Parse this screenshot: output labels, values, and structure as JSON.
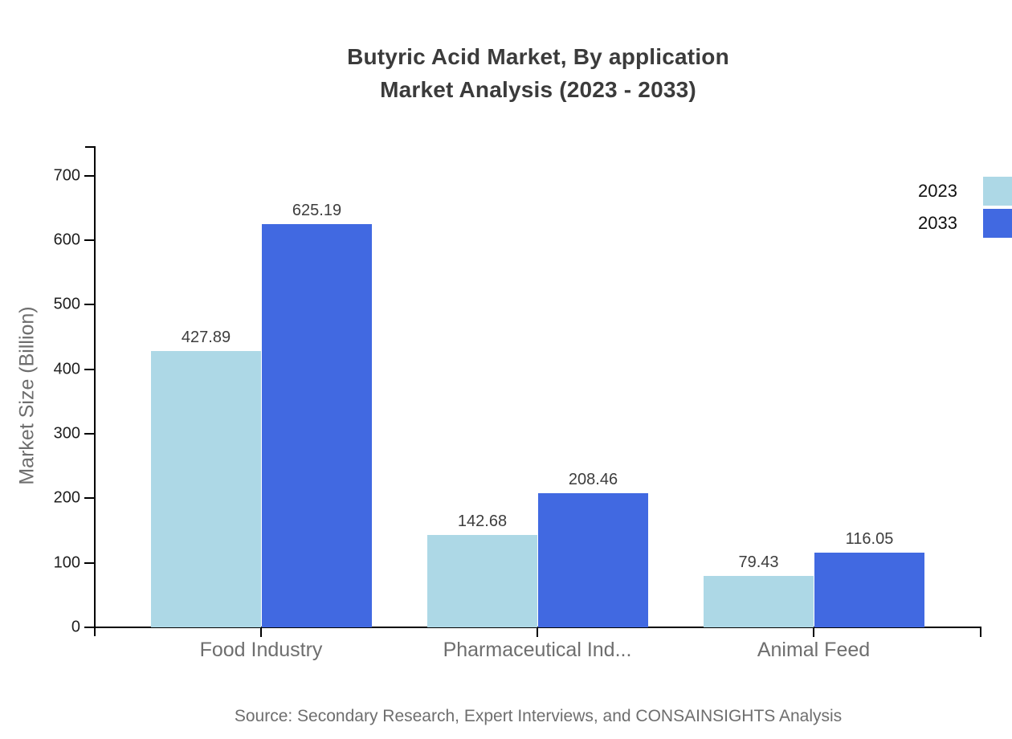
{
  "title": {
    "line1": "Butyric Acid Market, By application",
    "line2": "Market Analysis (2023 - 2033)"
  },
  "source": "Source: Secondary Research, Expert Interviews, and CONSAINSIGHTS Analysis",
  "legend": {
    "position": "top-right",
    "items": [
      {
        "label": "2023",
        "color": "#ADD8E6"
      },
      {
        "label": "2033",
        "color": "#4169E1"
      }
    ]
  },
  "colors": {
    "series_2023": "#ADD8E6",
    "series_2033": "#4169E1",
    "axis": "#000000",
    "title_text": "#3b3b3b",
    "muted_text": "#6e6e6e",
    "tick_text": "#1f1f1f",
    "value_text": "#3d3d3d"
  },
  "chart_data": {
    "type": "bar",
    "title": "Butyric Acid Market, By application Market Analysis (2023 - 2033)",
    "categories": [
      "Food Industry",
      "Pharmaceutical Ind...",
      "Animal Feed"
    ],
    "series": [
      {
        "name": "2023",
        "color": "#ADD8E6",
        "values": [
          427.89,
          142.68,
          79.43
        ]
      },
      {
        "name": "2033",
        "color": "#4169E1",
        "values": [
          625.19,
          208.46,
          116.05
        ]
      }
    ],
    "xlabel": "",
    "ylabel": "Market Size (Billion)",
    "ylim": [
      0,
      750
    ],
    "yticks": [
      0,
      100,
      200,
      300,
      400,
      500,
      600,
      700
    ],
    "grid": false,
    "value_labels": true,
    "legend_position": "top-right"
  }
}
